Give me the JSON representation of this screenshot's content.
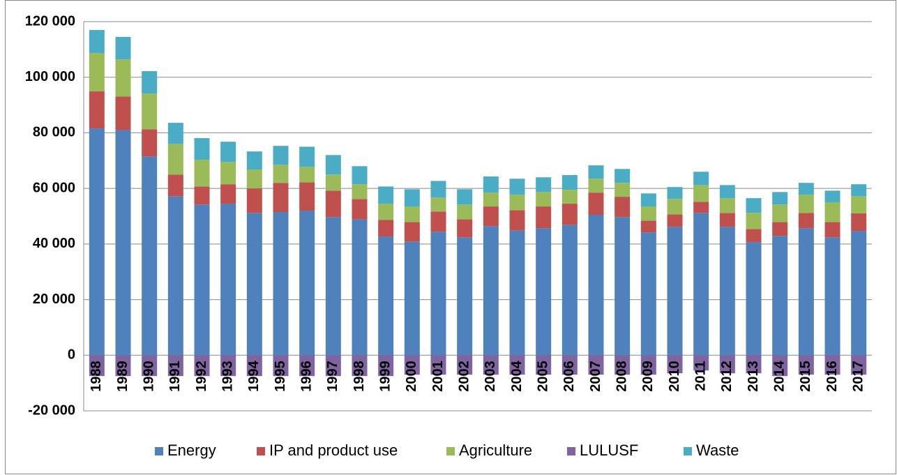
{
  "chart_data": {
    "type": "bar",
    "stacked": true,
    "categories": [
      "1988",
      "1989",
      "1990",
      "1991",
      "1992",
      "1993",
      "1994",
      "1995",
      "1996",
      "1997",
      "1998",
      "1999",
      "2000",
      "2001",
      "2002",
      "2003",
      "2004",
      "2005",
      "2006",
      "2007",
      "2008",
      "2009",
      "2010",
      "2011",
      "2012",
      "2013",
      "2014",
      "2015",
      "2016",
      "2017"
    ],
    "series": [
      {
        "name": "Energy",
        "color": "#4f81bd",
        "values": [
          81600,
          81000,
          71500,
          57200,
          54200,
          54500,
          51200,
          51500,
          52000,
          49700,
          48900,
          42700,
          40900,
          44400,
          42400,
          46400,
          44900,
          45700,
          46900,
          50500,
          49700,
          44200,
          46200,
          51200,
          46200,
          40700,
          42900,
          45700,
          42400,
          44700
        ]
      },
      {
        "name": "IP and product use",
        "color": "#c0504d",
        "values": [
          13300,
          12100,
          9800,
          7800,
          6500,
          7000,
          8800,
          10500,
          10200,
          9500,
          7300,
          6000,
          7000,
          7300,
          6500,
          7100,
          7300,
          7800,
          7600,
          8000,
          7300,
          4200,
          4500,
          4000,
          5000,
          4700,
          5000,
          5500,
          5500,
          6300
        ]
      },
      {
        "name": "Agriculture",
        "color": "#9bbb59",
        "values": [
          13800,
          13300,
          12800,
          11000,
          9600,
          8000,
          6800,
          6500,
          5600,
          5800,
          5300,
          5800,
          5600,
          5000,
          5300,
          5000,
          5500,
          5200,
          5000,
          5000,
          5000,
          5100,
          5500,
          6000,
          5300,
          5800,
          6300,
          6500,
          7100,
          6200
        ]
      },
      {
        "name": "LULUSF",
        "color": "#8064a2",
        "values": [
          -7500,
          -7500,
          -7500,
          -7500,
          -7500,
          -7500,
          -7500,
          -7500,
          -7500,
          -7500,
          -7500,
          -7500,
          -7000,
          -7000,
          -7000,
          -7000,
          -7000,
          -7000,
          -7000,
          -7000,
          -7000,
          -7000,
          -6500,
          -5500,
          -6500,
          -6500,
          -7500,
          -7000,
          -7000,
          -7000
        ]
      },
      {
        "name": "Waste",
        "color": "#4bacc6",
        "values": [
          8300,
          8100,
          8100,
          7600,
          7800,
          7300,
          6500,
          6800,
          7200,
          7000,
          6500,
          6200,
          6200,
          6000,
          5500,
          5800,
          5800,
          5300,
          5300,
          4800,
          5000,
          4700,
          4300,
          4800,
          4700,
          5300,
          4500,
          4300,
          4200,
          4300
        ]
      }
    ],
    "ylim": [
      -20000,
      120000
    ],
    "yticks": [
      {
        "value": -20000,
        "label": "-20 000"
      },
      {
        "value": 0,
        "label": "0"
      },
      {
        "value": 20000,
        "label": "20 000"
      },
      {
        "value": 40000,
        "label": "40 000"
      },
      {
        "value": 60000,
        "label": "60 000"
      },
      {
        "value": 80000,
        "label": "80 000"
      },
      {
        "value": 100000,
        "label": "100 000"
      },
      {
        "value": 120000,
        "label": "120 000"
      }
    ],
    "grid": true,
    "legend": "bottom"
  }
}
